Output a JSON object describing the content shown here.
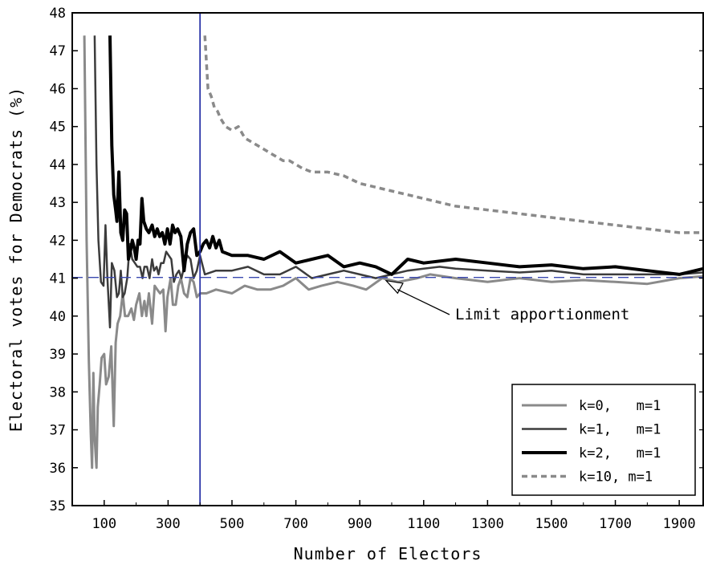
{
  "chart_data": {
    "type": "line",
    "xlabel": "Number of Electors",
    "ylabel": "Electoral votes for Democrats (%)",
    "xlim": [
      0,
      1975
    ],
    "ylim": [
      35,
      48
    ],
    "x_ticks": [
      100,
      300,
      500,
      700,
      900,
      1100,
      1300,
      1500,
      1700,
      1900
    ],
    "y_ticks": [
      35,
      36,
      37,
      38,
      39,
      40,
      41,
      42,
      43,
      44,
      45,
      46,
      47,
      48
    ],
    "grid": false,
    "legend_position": "bottom-right",
    "reference_lines": [
      {
        "orientation": "vertical",
        "x": 400,
        "color": "#2b35a8"
      },
      {
        "orientation": "horizontal",
        "y": 41.02,
        "color": "#3a48b0",
        "style": "dashed"
      }
    ],
    "annotations": [
      {
        "text": "Limit apportionment",
        "x": 975,
        "y": 41.02
      }
    ],
    "series": [
      {
        "name": "k=0, m=1",
        "color": "#8a8a8a",
        "width": 3,
        "dash": "",
        "points": [
          [
            38,
            47.4
          ],
          [
            45,
            42.0
          ],
          [
            52,
            38.8
          ],
          [
            58,
            36.9
          ],
          [
            62,
            36.0
          ],
          [
            66,
            38.5
          ],
          [
            70,
            36.8
          ],
          [
            76,
            36.0
          ],
          [
            80,
            37.6
          ],
          [
            86,
            38.2
          ],
          [
            92,
            38.9
          ],
          [
            100,
            39.0
          ],
          [
            106,
            38.2
          ],
          [
            114,
            38.4
          ],
          [
            122,
            39.2
          ],
          [
            130,
            37.1
          ],
          [
            136,
            39.3
          ],
          [
            142,
            39.8
          ],
          [
            150,
            40.0
          ],
          [
            158,
            40.6
          ],
          [
            165,
            40.0
          ],
          [
            175,
            40.0
          ],
          [
            185,
            40.2
          ],
          [
            193,
            39.9
          ],
          [
            200,
            40.3
          ],
          [
            210,
            40.6
          ],
          [
            218,
            40.0
          ],
          [
            226,
            40.4
          ],
          [
            232,
            40.0
          ],
          [
            240,
            40.6
          ],
          [
            250,
            39.8
          ],
          [
            258,
            40.8
          ],
          [
            266,
            40.7
          ],
          [
            275,
            40.6
          ],
          [
            285,
            40.7
          ],
          [
            292,
            39.6
          ],
          [
            298,
            40.5
          ],
          [
            308,
            41.0
          ],
          [
            315,
            40.3
          ],
          [
            324,
            40.3
          ],
          [
            332,
            40.8
          ],
          [
            340,
            41.0
          ],
          [
            350,
            40.6
          ],
          [
            360,
            40.5
          ],
          [
            370,
            41.0
          ],
          [
            380,
            40.9
          ],
          [
            390,
            40.5
          ],
          [
            400,
            40.6
          ],
          [
            420,
            40.6
          ],
          [
            450,
            40.7
          ],
          [
            500,
            40.6
          ],
          [
            540,
            40.8
          ],
          [
            580,
            40.7
          ],
          [
            620,
            40.7
          ],
          [
            660,
            40.8
          ],
          [
            700,
            41.0
          ],
          [
            740,
            40.7
          ],
          [
            780,
            40.8
          ],
          [
            830,
            40.9
          ],
          [
            880,
            40.8
          ],
          [
            920,
            40.7
          ],
          [
            970,
            41.0
          ],
          [
            1020,
            40.9
          ],
          [
            1080,
            41.0
          ],
          [
            1120,
            41.1
          ],
          [
            1200,
            41.0
          ],
          [
            1300,
            40.9
          ],
          [
            1400,
            41.0
          ],
          [
            1500,
            40.9
          ],
          [
            1600,
            40.95
          ],
          [
            1700,
            40.9
          ],
          [
            1800,
            40.85
          ],
          [
            1900,
            41.0
          ],
          [
            1975,
            41.05
          ]
        ]
      },
      {
        "name": "k=1, m=1",
        "color": "#3c3c3c",
        "width": 2.5,
        "dash": "",
        "points": [
          [
            70,
            47.4
          ],
          [
            76,
            44.0
          ],
          [
            82,
            42.0
          ],
          [
            90,
            40.9
          ],
          [
            98,
            40.8
          ],
          [
            104,
            42.4
          ],
          [
            110,
            41.0
          ],
          [
            118,
            39.7
          ],
          [
            124,
            41.4
          ],
          [
            132,
            41.2
          ],
          [
            140,
            40.5
          ],
          [
            146,
            40.6
          ],
          [
            152,
            41.2
          ],
          [
            158,
            40.5
          ],
          [
            164,
            40.6
          ],
          [
            172,
            41.0
          ],
          [
            180,
            41.9
          ],
          [
            188,
            41.5
          ],
          [
            196,
            41.4
          ],
          [
            204,
            41.3
          ],
          [
            212,
            41.3
          ],
          [
            220,
            41.0
          ],
          [
            226,
            41.3
          ],
          [
            234,
            41.3
          ],
          [
            242,
            41.0
          ],
          [
            250,
            41.5
          ],
          [
            256,
            41.2
          ],
          [
            264,
            41.3
          ],
          [
            270,
            41.1
          ],
          [
            278,
            41.4
          ],
          [
            286,
            41.4
          ],
          [
            294,
            41.7
          ],
          [
            302,
            41.6
          ],
          [
            310,
            41.5
          ],
          [
            318,
            40.9
          ],
          [
            326,
            41.1
          ],
          [
            334,
            41.2
          ],
          [
            342,
            41.0
          ],
          [
            350,
            41.3
          ],
          [
            360,
            41.6
          ],
          [
            370,
            41.5
          ],
          [
            380,
            41.0
          ],
          [
            390,
            41.2
          ],
          [
            400,
            41.6
          ],
          [
            415,
            41.1
          ],
          [
            450,
            41.2
          ],
          [
            500,
            41.2
          ],
          [
            550,
            41.3
          ],
          [
            600,
            41.1
          ],
          [
            650,
            41.1
          ],
          [
            700,
            41.3
          ],
          [
            750,
            41.0
          ],
          [
            800,
            41.1
          ],
          [
            850,
            41.2
          ],
          [
            900,
            41.1
          ],
          [
            950,
            41.0
          ],
          [
            1000,
            41.1
          ],
          [
            1050,
            41.2
          ],
          [
            1100,
            41.25
          ],
          [
            1150,
            41.3
          ],
          [
            1200,
            41.25
          ],
          [
            1300,
            41.2
          ],
          [
            1400,
            41.15
          ],
          [
            1500,
            41.2
          ],
          [
            1600,
            41.1
          ],
          [
            1700,
            41.1
          ],
          [
            1800,
            41.1
          ],
          [
            1900,
            41.1
          ],
          [
            1975,
            41.15
          ]
        ]
      },
      {
        "name": "k=2, m=1",
        "color": "#000000",
        "width": 4,
        "dash": "",
        "points": [
          [
            118,
            47.4
          ],
          [
            124,
            44.5
          ],
          [
            130,
            43.2
          ],
          [
            136,
            42.8
          ],
          [
            140,
            42.5
          ],
          [
            146,
            43.8
          ],
          [
            152,
            42.2
          ],
          [
            158,
            42.0
          ],
          [
            164,
            42.8
          ],
          [
            170,
            42.7
          ],
          [
            176,
            41.5
          ],
          [
            182,
            41.7
          ],
          [
            188,
            42.0
          ],
          [
            194,
            41.8
          ],
          [
            200,
            41.5
          ],
          [
            206,
            42.0
          ],
          [
            212,
            41.9
          ],
          [
            218,
            43.1
          ],
          [
            224,
            42.5
          ],
          [
            232,
            42.3
          ],
          [
            240,
            42.2
          ],
          [
            250,
            42.4
          ],
          [
            258,
            42.1
          ],
          [
            266,
            42.3
          ],
          [
            274,
            42.1
          ],
          [
            282,
            42.2
          ],
          [
            290,
            41.9
          ],
          [
            298,
            42.3
          ],
          [
            306,
            41.9
          ],
          [
            314,
            42.4
          ],
          [
            322,
            42.2
          ],
          [
            330,
            42.3
          ],
          [
            340,
            42.1
          ],
          [
            350,
            41.2
          ],
          [
            360,
            41.9
          ],
          [
            370,
            42.2
          ],
          [
            380,
            42.3
          ],
          [
            390,
            41.6
          ],
          [
            400,
            41.7
          ],
          [
            410,
            41.9
          ],
          [
            420,
            42.0
          ],
          [
            430,
            41.8
          ],
          [
            440,
            42.1
          ],
          [
            450,
            41.8
          ],
          [
            460,
            42.0
          ],
          [
            470,
            41.7
          ],
          [
            500,
            41.6
          ],
          [
            550,
            41.6
          ],
          [
            600,
            41.5
          ],
          [
            650,
            41.7
          ],
          [
            700,
            41.4
          ],
          [
            750,
            41.5
          ],
          [
            800,
            41.6
          ],
          [
            850,
            41.3
          ],
          [
            900,
            41.4
          ],
          [
            950,
            41.3
          ],
          [
            1000,
            41.1
          ],
          [
            1050,
            41.5
          ],
          [
            1100,
            41.4
          ],
          [
            1200,
            41.5
          ],
          [
            1300,
            41.4
          ],
          [
            1400,
            41.3
          ],
          [
            1500,
            41.35
          ],
          [
            1600,
            41.25
          ],
          [
            1700,
            41.3
          ],
          [
            1800,
            41.2
          ],
          [
            1900,
            41.1
          ],
          [
            1975,
            41.25
          ]
        ]
      },
      {
        "name": "k=10, m=1",
        "color": "#8a8a8a",
        "width": 3.5,
        "dash": "7 5",
        "points": [
          [
            415,
            47.4
          ],
          [
            425,
            46.0
          ],
          [
            435,
            45.8
          ],
          [
            445,
            45.5
          ],
          [
            455,
            45.4
          ],
          [
            465,
            45.2
          ],
          [
            480,
            45.0
          ],
          [
            500,
            44.9
          ],
          [
            520,
            45.0
          ],
          [
            540,
            44.7
          ],
          [
            560,
            44.6
          ],
          [
            580,
            44.5
          ],
          [
            600,
            44.4
          ],
          [
            620,
            44.3
          ],
          [
            640,
            44.2
          ],
          [
            660,
            44.1
          ],
          [
            680,
            44.1
          ],
          [
            700,
            44.0
          ],
          [
            720,
            43.9
          ],
          [
            750,
            43.8
          ],
          [
            800,
            43.8
          ],
          [
            850,
            43.7
          ],
          [
            900,
            43.5
          ],
          [
            950,
            43.4
          ],
          [
            1000,
            43.3
          ],
          [
            1050,
            43.2
          ],
          [
            1100,
            43.1
          ],
          [
            1150,
            43.0
          ],
          [
            1200,
            42.9
          ],
          [
            1300,
            42.8
          ],
          [
            1400,
            42.7
          ],
          [
            1500,
            42.6
          ],
          [
            1600,
            42.5
          ],
          [
            1700,
            42.4
          ],
          [
            1800,
            42.3
          ],
          [
            1900,
            42.2
          ],
          [
            1975,
            42.2
          ]
        ]
      }
    ],
    "legend": [
      {
        "label": "k=0,   m=1",
        "series": 0
      },
      {
        "label": "k=1,   m=1",
        "series": 1
      },
      {
        "label": "k=2,   m=1",
        "series": 2
      },
      {
        "label": "k=10, m=1",
        "series": 3
      }
    ]
  }
}
